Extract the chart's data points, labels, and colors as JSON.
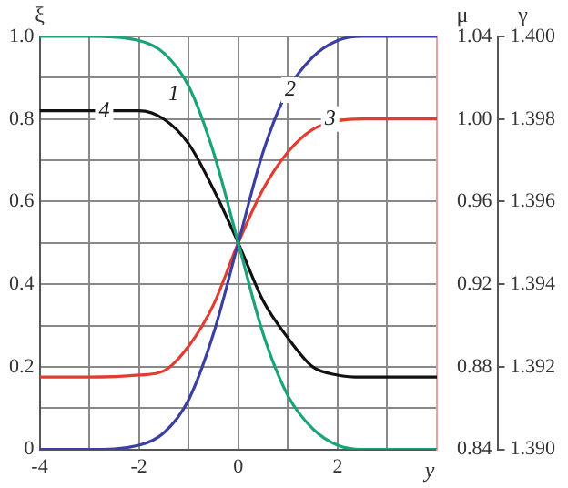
{
  "chart_data": {
    "type": "line",
    "ylabel": "ξ",
    "y2label": "μ",
    "y3label": "γ",
    "xlabel": "y",
    "xlim": [
      -4,
      4
    ],
    "xticks": [
      -4,
      {
        "value": -3,
        "label": null
      },
      -2,
      {
        "value": -1,
        "label": null
      },
      0,
      {
        "value": 1,
        "label": null
      },
      2,
      {
        "value": 3,
        "label": null
      }
    ],
    "ylim": [
      0,
      1
    ],
    "yticks": [
      0,
      {
        "value": 0.1,
        "label": null
      },
      0.2,
      {
        "value": 0.3,
        "label": null
      },
      0.4,
      {
        "value": 0.5,
        "label": null
      },
      0.6,
      {
        "value": 0.7,
        "label": null
      },
      0.8,
      {
        "value": 0.9,
        "label": null
      },
      {
        "value": 1,
        "label": "1.0"
      }
    ],
    "y2lim": [
      0.84,
      1.04
    ],
    "y2ticks": [
      0.84,
      0.88,
      0.92,
      0.96,
      {
        "value": 1,
        "label": "1.00"
      },
      1.04
    ],
    "y3lim": [
      1.39,
      1.4
    ],
    "y3ticks": [
      {
        "value": 1.39,
        "label": "1.390"
      },
      1.392,
      1.394,
      1.396,
      1.398,
      {
        "value": 1.4,
        "label": "1.400"
      }
    ],
    "grid": true,
    "legend": false,
    "marker": "none",
    "line_style": "solid",
    "x": [
      -4,
      -3,
      -2,
      -1.5,
      -1,
      -0.5,
      0,
      0.5,
      1,
      1.5,
      2,
      2.5,
      3,
      4
    ],
    "series": [
      {
        "color": "#1aa37a",
        "values": [
          1,
          1,
          0.99,
          0.96,
          0.88,
          0.72,
          0.5,
          0.28,
          0.13,
          0.05,
          0.01,
          0,
          0,
          0
        ]
      },
      {
        "color": "#3a3fa0",
        "values": [
          0,
          0,
          0.01,
          0.04,
          0.12,
          0.28,
          0.5,
          0.72,
          0.87,
          0.95,
          0.99,
          1,
          1,
          1
        ]
      },
      {
        "color": "#e03c31",
        "axis": "y2",
        "values": [
          0.875,
          0.875,
          0.876,
          0.878,
          0.89,
          0.91,
          0.94,
          0.966,
          0.984,
          0.995,
          0.999,
          1,
          1,
          1
        ]
      },
      {
        "color": "#111111",
        "axis": "y3",
        "values": [
          1.3982,
          1.3982,
          1.3982,
          1.398,
          1.3974,
          1.3963,
          1.395,
          1.3936,
          1.3927,
          1.392,
          1.3918,
          1.39175,
          1.39175,
          1.39175
        ]
      }
    ],
    "annotations": [
      {
        "text": "1",
        "x": -1.3,
        "y": 0.86
      },
      {
        "text": "2",
        "x": 1.05,
        "y": 0.87
      },
      {
        "text": "3",
        "x": 1.85,
        "y": 0.8
      },
      {
        "text": "4",
        "x": -2.7,
        "y": 0.82
      }
    ]
  }
}
